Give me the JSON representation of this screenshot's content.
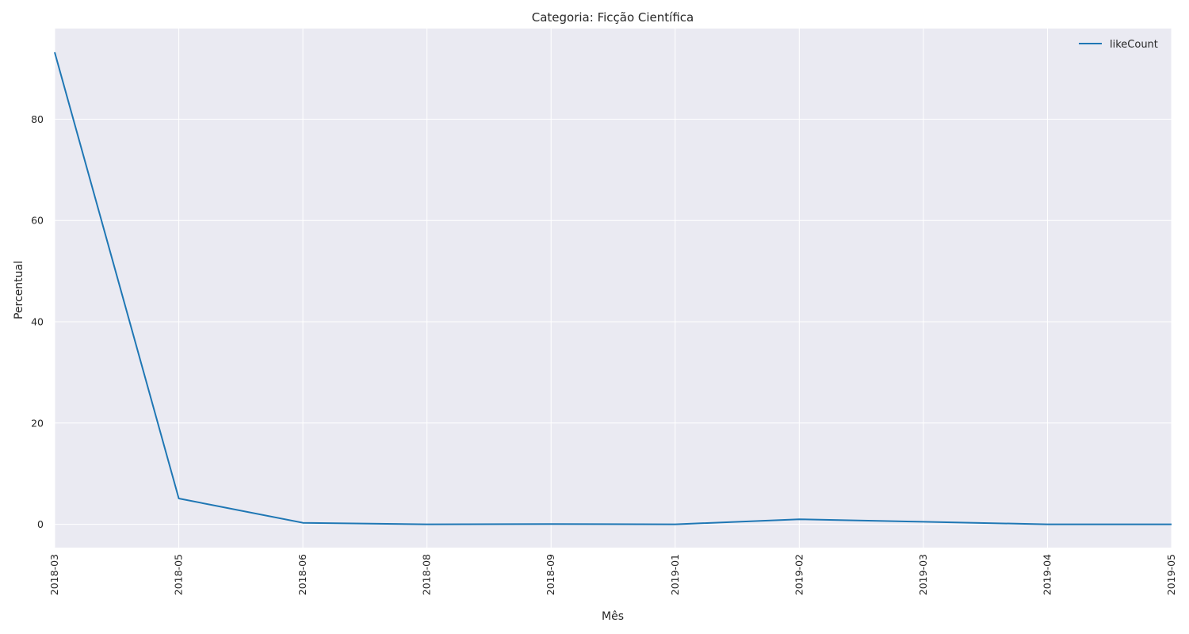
{
  "chart_data": {
    "type": "line",
    "title": "Categoria: Ficção Científica",
    "xlabel": "Mês",
    "ylabel": "Percentual",
    "categories": [
      "2018-03",
      "2018-05",
      "2018-06",
      "2018-08",
      "2018-09",
      "2019-01",
      "2019-02",
      "2019-03",
      "2019-04",
      "2019-05"
    ],
    "series": [
      {
        "name": "likeCount",
        "color": "#1f77b4",
        "values": [
          93.2,
          5.1,
          0.3,
          0.0,
          0.05,
          0.0,
          1.0,
          0.5,
          0.0,
          0.0
        ]
      }
    ],
    "ylim": [
      -4.6,
      97.9
    ],
    "yticks": [
      0,
      20,
      40,
      60,
      80
    ],
    "grid": true,
    "legend": "top-right",
    "background": "#eaeaf2",
    "grid_color": "#ffffff"
  }
}
